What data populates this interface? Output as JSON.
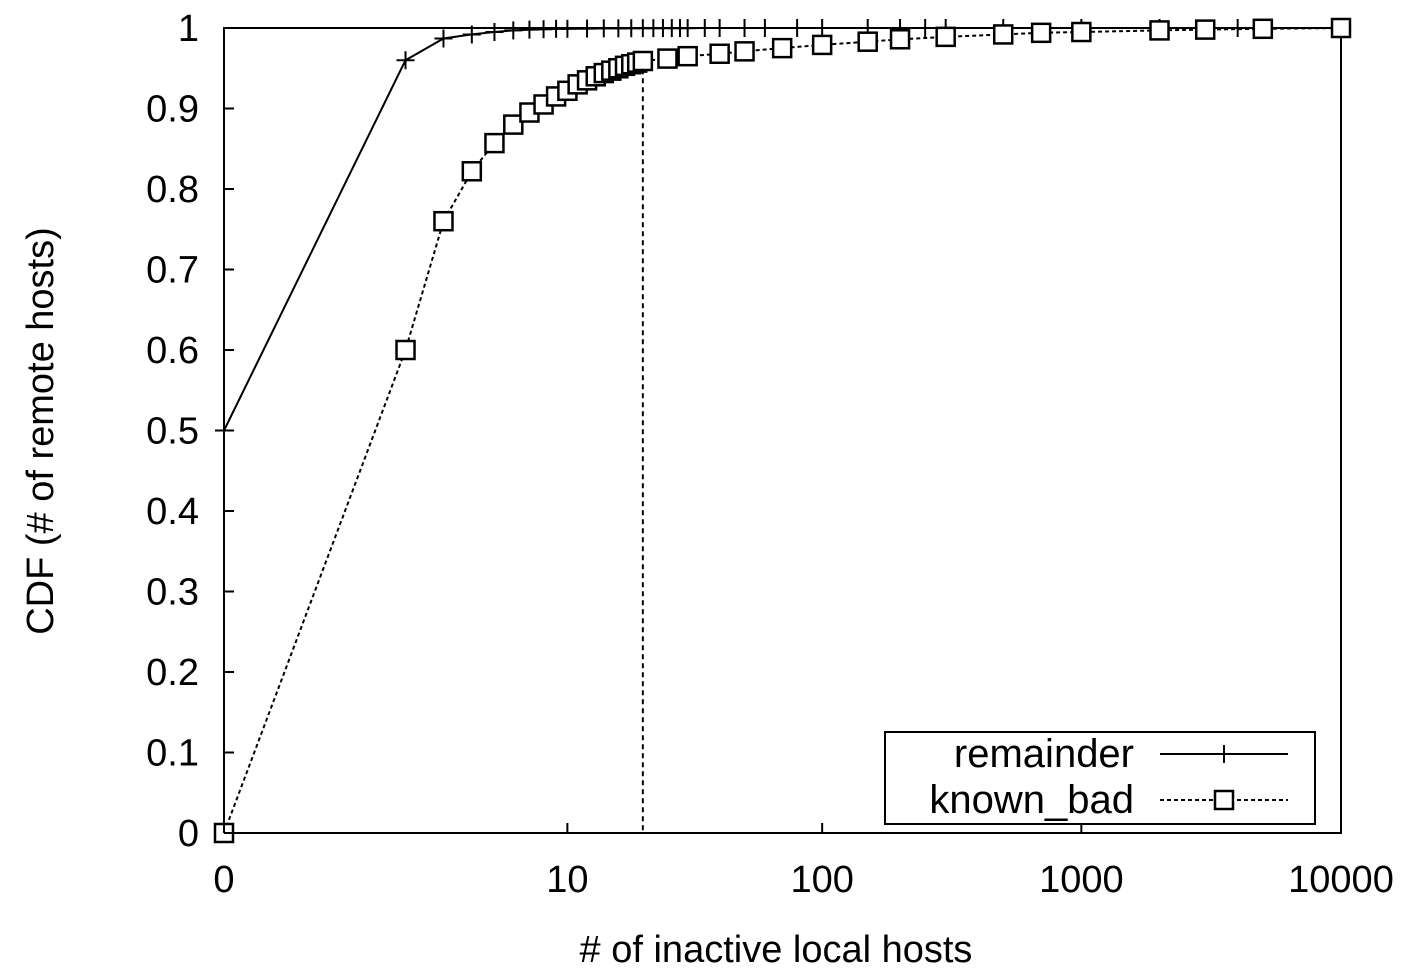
{
  "chart_data": {
    "type": "line",
    "title": "",
    "xlabel": "# of inactive local hosts",
    "ylabel": "CDF (# of remote hosts)",
    "x_scale": "log (0 shown at origin)",
    "xlim": [
      0,
      10000
    ],
    "ylim": [
      0,
      1
    ],
    "x_ticks": [
      {
        "value": 0,
        "label": "0"
      },
      {
        "value": 10,
        "label": "10"
      },
      {
        "value": 100,
        "label": "100"
      },
      {
        "value": 1000,
        "label": "1000"
      },
      {
        "value": 10000,
        "label": "10000"
      }
    ],
    "y_ticks": [
      {
        "value": 0,
        "label": "0"
      },
      {
        "value": 0.1,
        "label": "0.1"
      },
      {
        "value": 0.2,
        "label": "0.2"
      },
      {
        "value": 0.3,
        "label": "0.3"
      },
      {
        "value": 0.4,
        "label": "0.4"
      },
      {
        "value": 0.5,
        "label": "0.5"
      },
      {
        "value": 0.6,
        "label": "0.6"
      },
      {
        "value": 0.7,
        "label": "0.7"
      },
      {
        "value": 0.8,
        "label": "0.8"
      },
      {
        "value": 0.9,
        "label": "0.9"
      },
      {
        "value": 1,
        "label": "1"
      }
    ],
    "grid": false,
    "legend_position": "bottom-right",
    "reference_line": {
      "x": 20,
      "style": "dashed vertical"
    },
    "series": [
      {
        "name": "remainder",
        "line_style": "solid",
        "marker": "plus",
        "color": "#000000",
        "x": [
          0,
          2,
          3,
          4,
          5,
          6,
          7,
          8,
          9,
          10,
          12,
          14,
          16,
          18,
          20,
          22,
          24,
          26,
          28,
          30,
          35,
          40,
          50,
          60,
          80,
          100,
          150,
          200,
          250,
          300,
          500,
          1000,
          2000,
          4000
        ],
        "y": [
          0.5,
          0.96,
          0.987,
          0.992,
          0.995,
          0.997,
          0.998,
          0.9985,
          0.999,
          0.999,
          0.9993,
          0.9995,
          0.9996,
          0.9997,
          0.9998,
          0.9998,
          0.9999,
          0.9999,
          0.9999,
          0.9999,
          1,
          1,
          1,
          1,
          1,
          1,
          1,
          1,
          1,
          1,
          1,
          1,
          1,
          1
        ]
      },
      {
        "name": "known_bad",
        "line_style": "dotted",
        "marker": "square",
        "color": "#000000",
        "x": [
          0,
          2,
          3,
          4,
          5,
          6,
          7,
          8,
          9,
          10,
          11,
          12,
          13,
          14,
          15,
          16,
          17,
          18,
          19,
          20,
          25,
          30,
          40,
          50,
          70,
          100,
          150,
          200,
          300,
          500,
          700,
          1000,
          2000,
          3000,
          5000,
          10000
        ],
        "y": [
          0,
          0.6,
          0.76,
          0.822,
          0.857,
          0.88,
          0.895,
          0.905,
          0.915,
          0.922,
          0.93,
          0.935,
          0.94,
          0.944,
          0.947,
          0.95,
          0.953,
          0.955,
          0.957,
          0.959,
          0.962,
          0.965,
          0.968,
          0.971,
          0.975,
          0.979,
          0.983,
          0.986,
          0.989,
          0.992,
          0.994,
          0.995,
          0.997,
          0.998,
          0.999,
          1
        ]
      }
    ]
  }
}
